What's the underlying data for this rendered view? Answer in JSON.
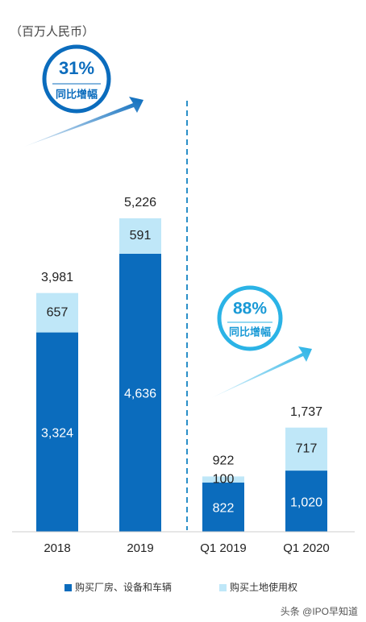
{
  "chart_data": {
    "type": "stacked_bar",
    "unit_label": "（百万人民币）",
    "categories": [
      "2018",
      "2019",
      "Q1 2019",
      "Q1 2020"
    ],
    "series": [
      {
        "name": "购买厂房、设备和车辆",
        "color": "#0b6cbd",
        "values": [
          3324,
          4636,
          822,
          1020
        ],
        "value_labels": [
          "3,324",
          "4,636",
          "822",
          "1,020"
        ]
      },
      {
        "name": "购买土地使用权",
        "color": "#bfe7f8",
        "values": [
          657,
          591,
          100,
          717
        ]
      }
    ],
    "totals": [
      3981,
      5226,
      922,
      1737
    ],
    "totals_labels": [
      "3,981",
      "5,226",
      "922",
      "1,737"
    ],
    "annotations": [
      {
        "text": "31%",
        "sub": "同比增幅"
      },
      {
        "text": "88%",
        "sub": "同比增幅"
      }
    ],
    "watermark": "头条 @IPO早知道"
  }
}
